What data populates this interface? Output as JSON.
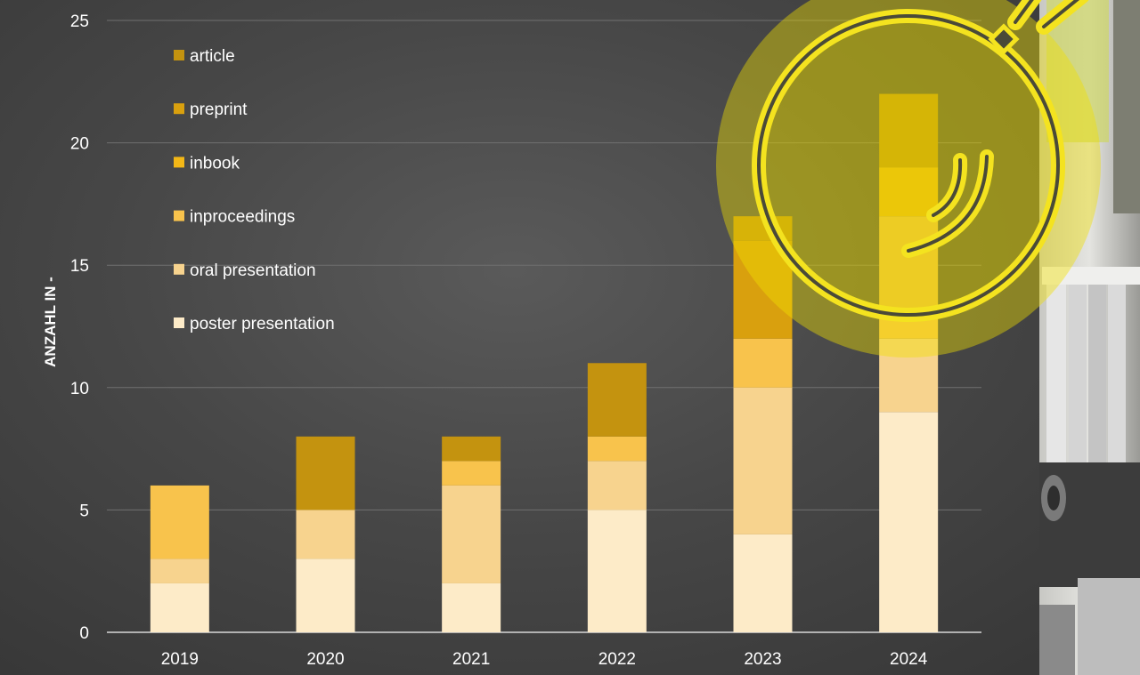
{
  "chart_data": {
    "type": "bar",
    "stacked": true,
    "title": "",
    "xlabel": "",
    "ylabel": "ANZAHL IN -",
    "ylim": [
      0,
      25
    ],
    "yticks": [
      0,
      5,
      10,
      15,
      20,
      25
    ],
    "grid": true,
    "legend_position": "top-left",
    "categories": [
      "2019",
      "2020",
      "2021",
      "2022",
      "2023",
      "2024"
    ],
    "series": [
      {
        "name": "poster presentation",
        "color": "#fdebc8",
        "values": [
          2,
          3,
          2,
          5,
          4,
          9
        ]
      },
      {
        "name": "oral presentation",
        "color": "#f7d38e",
        "values": [
          1,
          2,
          4,
          2,
          6,
          3
        ]
      },
      {
        "name": "inproceedings",
        "color": "#f8c34c",
        "values": [
          3,
          0,
          1,
          1,
          2,
          5
        ]
      },
      {
        "name": "inbook",
        "color": "#f3b716",
        "values": [
          0,
          0,
          0,
          0,
          0,
          2
        ]
      },
      {
        "name": "preprint",
        "color": "#d9a00e",
        "values": [
          0,
          0,
          0,
          0,
          4,
          0
        ]
      },
      {
        "name": "article",
        "color": "#c4930f",
        "values": [
          0,
          3,
          1,
          3,
          1,
          3
        ]
      }
    ]
  }
}
